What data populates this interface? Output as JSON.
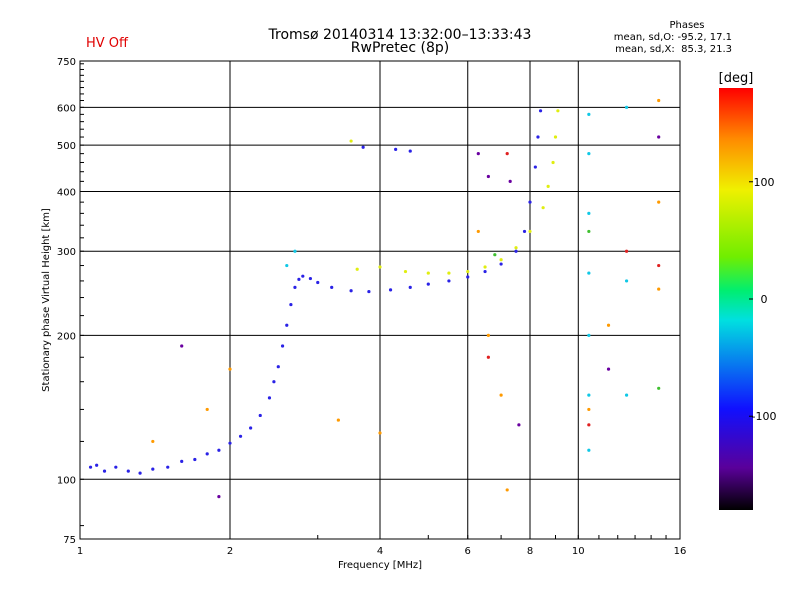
{
  "header": {
    "title_line1": "Tromsø 20140314 13:32:00–13:33:43",
    "title_line2": "RwPretec (8p)",
    "hv_status": "HV Off",
    "phase_title": "Phases",
    "phase_o": "mean, sd,O: -95.2, 17.1",
    "phase_x": "mean, sd,X:  85.3, 21.3"
  },
  "colorbar": {
    "unit": "[deg]",
    "ticks": [
      {
        "value": 100,
        "label": "100"
      },
      {
        "value": 0,
        "label": "0"
      },
      {
        "value": -100,
        "label": "-100"
      }
    ],
    "range": [
      -180,
      180
    ]
  },
  "chart_data": {
    "type": "scatter",
    "xlabel": "Frequency [MHz]",
    "ylabel": "Stationary phase Virtual Height [km]",
    "x_scale": "log",
    "y_scale": "log",
    "xlim": [
      1,
      16
    ],
    "ylim": [
      75,
      750
    ],
    "x_ticks": [
      1,
      2,
      4,
      6,
      8,
      10,
      16
    ],
    "y_ticks": [
      75,
      100,
      200,
      300,
      400,
      500,
      600,
      750
    ],
    "grid": true,
    "series": [
      {
        "color": "#2a22e6",
        "points": [
          [
            1.05,
            106
          ],
          [
            1.08,
            107
          ],
          [
            1.12,
            104
          ],
          [
            1.18,
            106
          ],
          [
            1.25,
            104
          ],
          [
            1.32,
            103
          ],
          [
            1.4,
            105
          ],
          [
            1.5,
            106
          ],
          [
            1.6,
            109
          ],
          [
            1.7,
            110
          ],
          [
            1.8,
            113
          ],
          [
            1.9,
            115
          ],
          [
            2.0,
            119
          ],
          [
            2.1,
            123
          ],
          [
            2.2,
            128
          ],
          [
            2.3,
            136
          ],
          [
            2.4,
            148
          ],
          [
            2.45,
            160
          ],
          [
            2.5,
            172
          ],
          [
            2.55,
            190
          ],
          [
            2.6,
            210
          ],
          [
            2.65,
            232
          ],
          [
            2.7,
            252
          ],
          [
            2.75,
            262
          ],
          [
            2.8,
            266
          ],
          [
            2.9,
            263
          ],
          [
            3.0,
            258
          ],
          [
            3.2,
            252
          ],
          [
            3.5,
            248
          ],
          [
            3.8,
            247
          ],
          [
            4.2,
            249
          ],
          [
            4.6,
            252
          ],
          [
            5.0,
            256
          ],
          [
            5.5,
            260
          ],
          [
            6.0,
            265
          ],
          [
            6.5,
            272
          ],
          [
            7.0,
            282
          ],
          [
            7.5,
            300
          ],
          [
            7.8,
            330
          ],
          [
            8.0,
            380
          ],
          [
            8.2,
            450
          ],
          [
            8.3,
            520
          ],
          [
            8.4,
            590
          ],
          [
            3.7,
            495
          ],
          [
            4.3,
            490
          ],
          [
            4.6,
            486
          ]
        ]
      },
      {
        "color": "#e0ee10",
        "points": [
          [
            3.6,
            275
          ],
          [
            4.0,
            278
          ],
          [
            4.5,
            272
          ],
          [
            5.0,
            270
          ],
          [
            5.5,
            270
          ],
          [
            6.0,
            272
          ],
          [
            6.5,
            278
          ],
          [
            7.0,
            288
          ],
          [
            7.5,
            305
          ],
          [
            8.0,
            330
          ],
          [
            8.5,
            370
          ],
          [
            8.7,
            410
          ],
          [
            8.9,
            460
          ],
          [
            9.0,
            520
          ],
          [
            9.1,
            590
          ],
          [
            3.5,
            510
          ]
        ]
      },
      {
        "color": "#10c8e6",
        "points": [
          [
            2.7,
            300
          ],
          [
            2.6,
            280
          ],
          [
            10.5,
            580
          ],
          [
            10.5,
            480
          ],
          [
            10.5,
            360
          ],
          [
            10.5,
            270
          ],
          [
            10.5,
            200
          ],
          [
            10.5,
            150
          ],
          [
            10.5,
            115
          ],
          [
            12.5,
            600
          ],
          [
            12.5,
            260
          ],
          [
            12.5,
            150
          ]
        ]
      },
      {
        "color": "#ff9a00",
        "points": [
          [
            1.4,
            120
          ],
          [
            1.8,
            140
          ],
          [
            2.0,
            170
          ],
          [
            3.3,
            133
          ],
          [
            4.0,
            125
          ],
          [
            6.3,
            330
          ],
          [
            6.6,
            200
          ],
          [
            7.0,
            150
          ],
          [
            7.2,
            95
          ],
          [
            10.5,
            140
          ],
          [
            14.5,
            620
          ],
          [
            14.5,
            380
          ],
          [
            14.5,
            250
          ],
          [
            11.5,
            210
          ]
        ]
      },
      {
        "color": "#6a00a0",
        "points": [
          [
            1.6,
            190
          ],
          [
            1.9,
            92
          ],
          [
            6.3,
            480
          ],
          [
            6.6,
            430
          ],
          [
            7.3,
            420
          ],
          [
            7.6,
            130
          ],
          [
            11.5,
            170
          ],
          [
            14.5,
            520
          ]
        ]
      },
      {
        "color": "#e02020",
        "points": [
          [
            6.6,
            180
          ],
          [
            7.2,
            480
          ],
          [
            10.5,
            130
          ],
          [
            12.5,
            300
          ],
          [
            14.5,
            280
          ]
        ]
      },
      {
        "color": "#40c030",
        "points": [
          [
            6.8,
            295
          ],
          [
            10.5,
            330
          ],
          [
            14.5,
            155
          ]
        ]
      }
    ]
  }
}
